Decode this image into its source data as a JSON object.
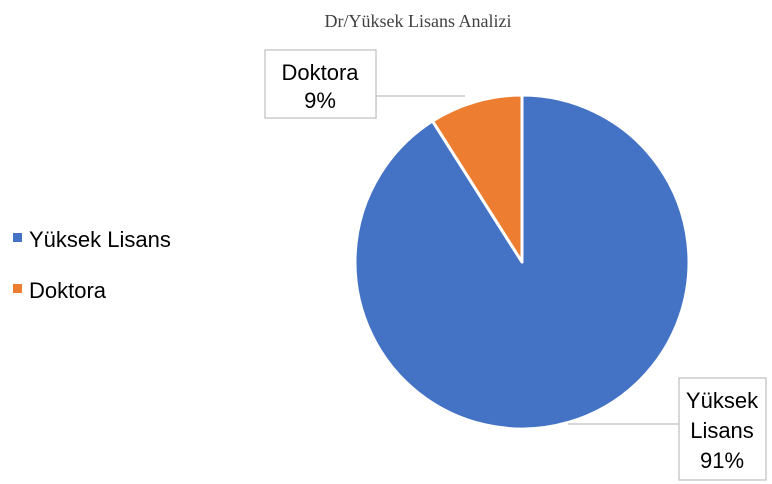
{
  "chart_data": {
    "type": "pie",
    "title": "Dr/Yüksek Lisans Analizi",
    "categories": [
      "Yüksek Lisans",
      "Doktora"
    ],
    "values": [
      91,
      9
    ],
    "unit": "%",
    "colors": [
      "#4472C4",
      "#ED7D31"
    ],
    "data_labels": [
      {
        "category": "Yüksek Lisans",
        "lines": [
          "Yüksek",
          "Lisans",
          "91%"
        ]
      },
      {
        "category": "Doktora",
        "lines": [
          "Doktora",
          "9%"
        ]
      }
    ],
    "legend": {
      "position": "left",
      "entries": [
        "Yüksek Lisans",
        "Doktora"
      ]
    }
  }
}
